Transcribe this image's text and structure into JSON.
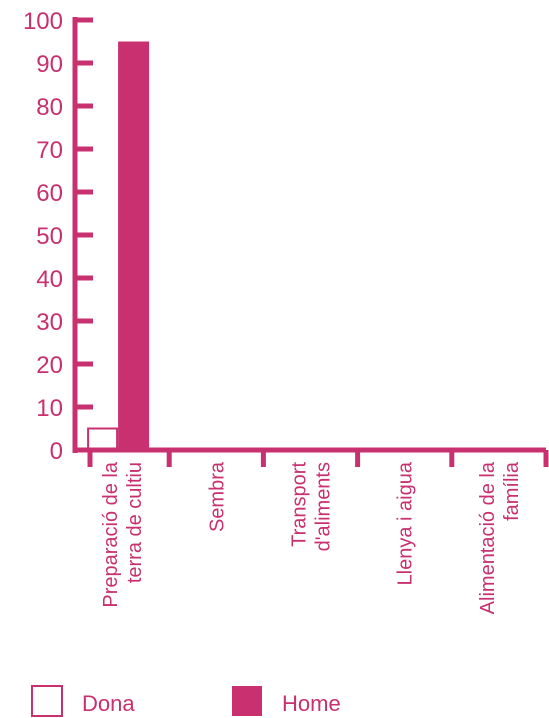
{
  "chart_data": {
    "type": "bar",
    "title": "",
    "xlabel": "",
    "ylabel": "",
    "ylim": [
      0,
      100
    ],
    "yticks": [
      0,
      10,
      20,
      30,
      40,
      50,
      60,
      70,
      80,
      90,
      100
    ],
    "categories": [
      [
        "Preparació de la",
        "terra de cultiu"
      ],
      [
        "Sembra"
      ],
      [
        "Transport",
        "d'aliments"
      ],
      [
        "Llenya i aigua"
      ],
      [
        "Alimentació de la",
        "família"
      ]
    ],
    "series": [
      {
        "name": "Dona",
        "values": [
          5,
          0,
          0,
          0,
          0
        ],
        "style": "outline"
      },
      {
        "name": "Home",
        "values": [
          95,
          0,
          0,
          0,
          0
        ],
        "style": "filled"
      }
    ],
    "colors": {
      "accent": "#c8306f",
      "background": "#ffffff"
    },
    "grid": false,
    "legend_position": "bottom"
  }
}
